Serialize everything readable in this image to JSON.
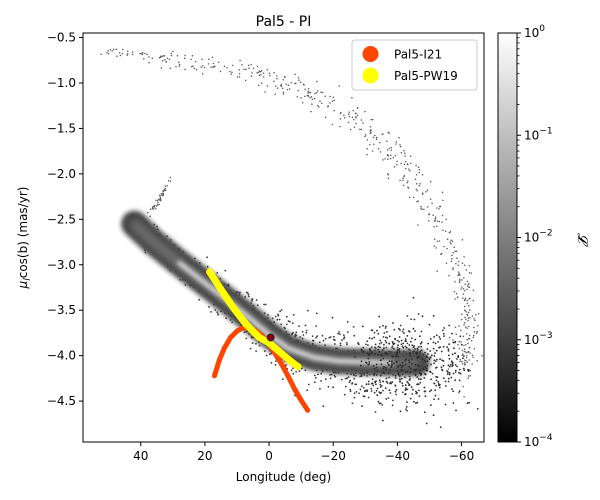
{
  "chart_data": {
    "type": "scatter",
    "title": "Pal5 - PI",
    "xlabel": "Longitude (deg)",
    "ylabel_main": "μ",
    "ylabel_sub": "l",
    "ylabel_rest": "cos(b) (mas/yr)",
    "xlim": [
      58,
      -67
    ],
    "ylim": [
      -4.95,
      -0.45
    ],
    "x_ticks": [
      40,
      20,
      0,
      -20,
      -40,
      -60
    ],
    "x_tick_labels": [
      "40",
      "20",
      "0",
      "−20",
      "−40",
      "−60"
    ],
    "y_ticks": [
      -4.5,
      -4.0,
      -3.5,
      -3.0,
      -2.5,
      -2.0,
      -1.5,
      -1.0,
      -0.5
    ],
    "y_tick_labels": [
      "−4.5",
      "−4.0",
      "−3.5",
      "−3.0",
      "−2.5",
      "−2.0",
      "−1.5",
      "−1.0",
      "−0.5"
    ],
    "colorbar": {
      "label": "𝓛",
      "scale": "log",
      "range": [
        0.0001,
        1
      ],
      "tick_values": [
        0.0001,
        0.001,
        0.01,
        0.1,
        1
      ],
      "tick_base": "10",
      "tick_exponents": [
        "−4",
        "−3",
        "−2",
        "−1",
        "0"
      ]
    },
    "legend": {
      "location": "top-right",
      "entries": [
        {
          "label": "Pal5-I21",
          "color": "#ff4500"
        },
        {
          "label": "Pal5-PW19",
          "color": "#ffff00"
        }
      ]
    },
    "series": [
      {
        "name": "Pal5-I21",
        "color": "#ff4500",
        "x": [
          17.0,
          15.5,
          14.0,
          12.0,
          10.0,
          8.0,
          6.0,
          4.0,
          2.0,
          0.0,
          -2.0,
          -4.0,
          -6.0,
          -8.0,
          -10.0,
          -12.0
        ],
        "y": [
          -4.22,
          -4.05,
          -3.92,
          -3.8,
          -3.73,
          -3.69,
          -3.7,
          -3.73,
          -3.79,
          -3.88,
          -3.98,
          -4.1,
          -4.23,
          -4.37,
          -4.49,
          -4.6
        ]
      },
      {
        "name": "Pal5-PW19",
        "color": "#ffff00",
        "x": [
          18.5,
          15.0,
          11.0,
          7.0,
          3.0,
          0.0,
          -3.0,
          -6.0,
          -9.0
        ],
        "y": [
          -3.08,
          -3.27,
          -3.48,
          -3.66,
          -3.8,
          -3.86,
          -3.95,
          -4.04,
          -4.12
        ]
      }
    ],
    "cluster_point": {
      "name": "Pal5",
      "x": -0.5,
      "y": -3.8,
      "color": "#8b0000"
    },
    "density_ridge": {
      "note": "particle density of stream model, colored by likelihood",
      "x": [
        42,
        36,
        28,
        20,
        12,
        5,
        0,
        -6,
        -14,
        -22,
        -30,
        -38,
        -46
      ],
      "y": [
        -2.55,
        -2.75,
        -2.98,
        -3.2,
        -3.42,
        -3.62,
        -3.77,
        -3.92,
        -4.02,
        -4.06,
        -4.07,
        -4.08,
        -4.08
      ]
    },
    "sparse_arc": {
      "note": "sparse tail of low-likelihood particles",
      "x": [
        53,
        45,
        35,
        25,
        15,
        5,
        -5,
        -15,
        -25,
        -33,
        -40,
        -46,
        -52,
        -57,
        -61,
        -62.5,
        -62,
        -60
      ],
      "y": [
        -0.65,
        -0.68,
        -0.72,
        -0.76,
        -0.82,
        -0.9,
        -1.0,
        -1.15,
        -1.35,
        -1.6,
        -1.85,
        -2.15,
        -2.5,
        -2.85,
        -3.2,
        -3.55,
        -3.85,
        -4.15
      ]
    }
  }
}
